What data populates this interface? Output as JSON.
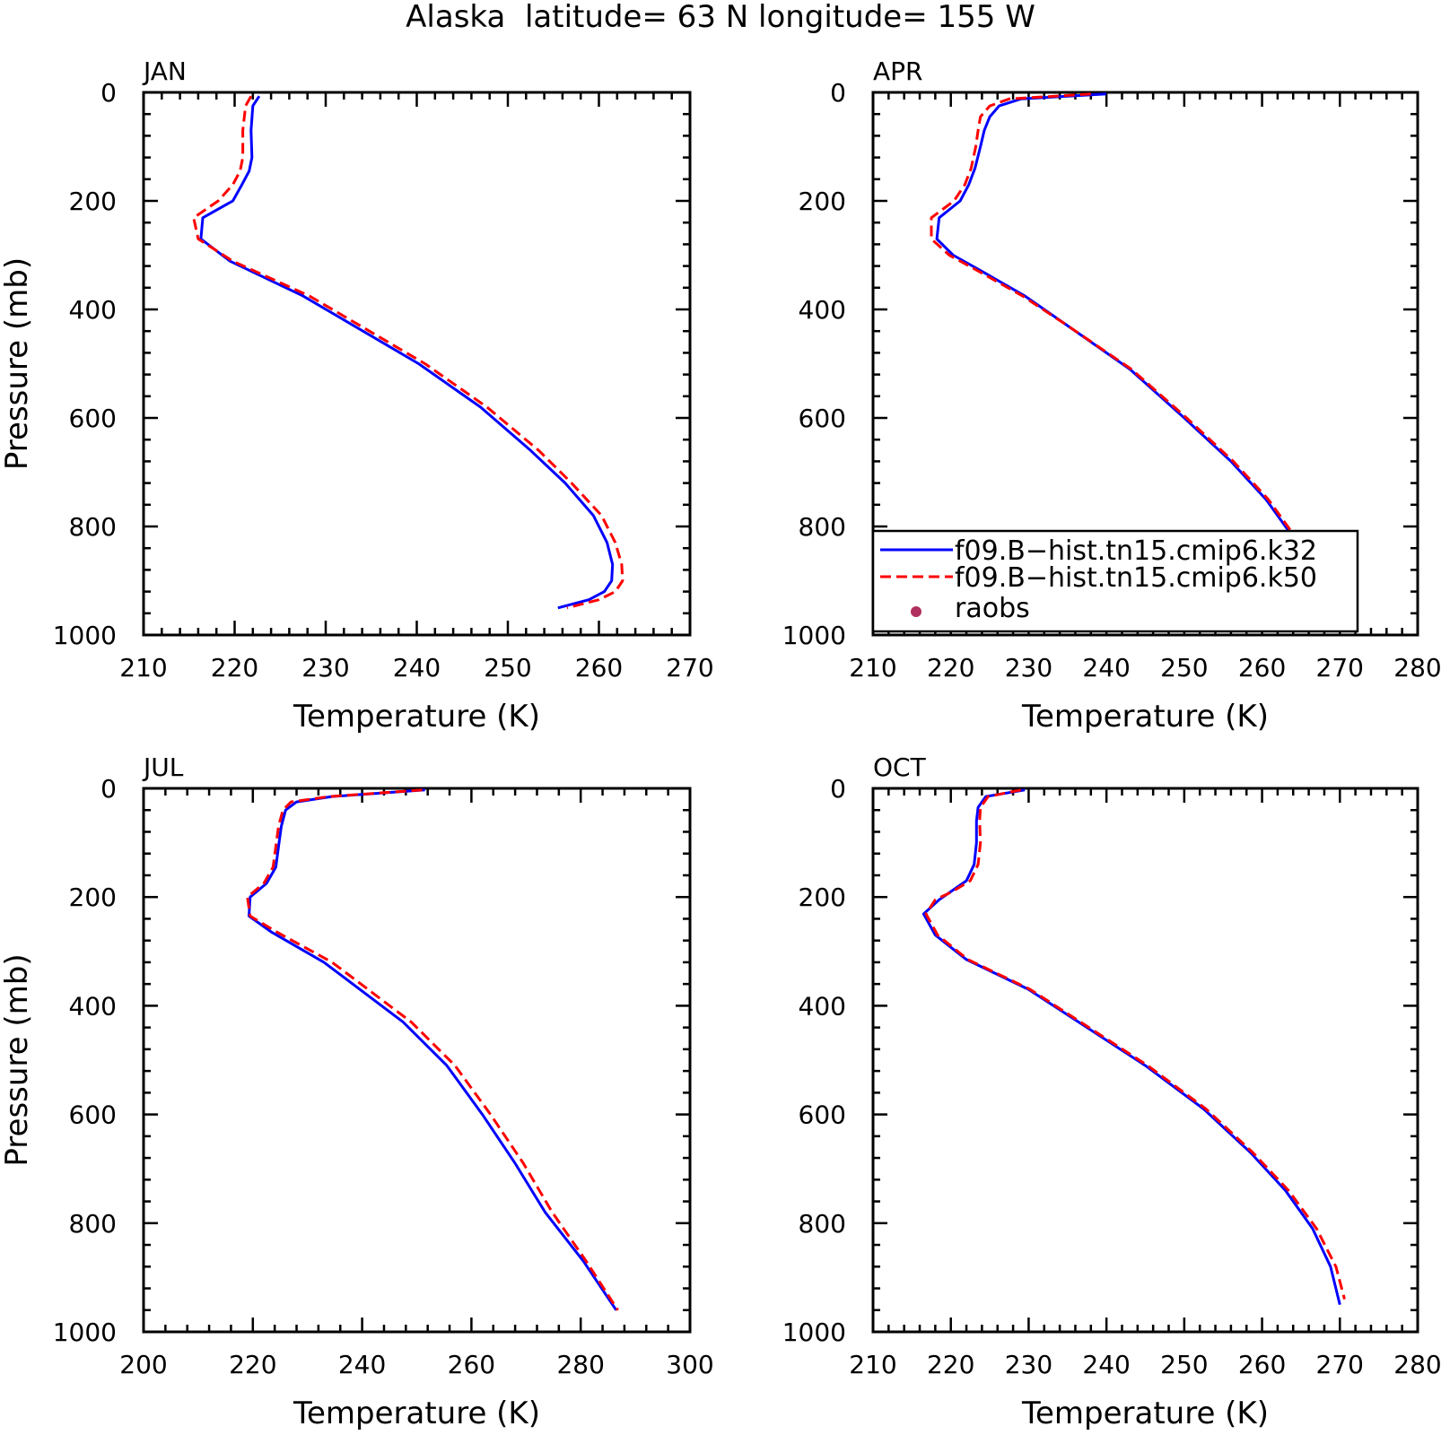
{
  "figure": {
    "title": "Alaska  latitude= 63 N longitude= 155 W"
  },
  "legend": {
    "entries": [
      {
        "label": "f09.B−hist.tn15.cmip6.k32",
        "color": "#0000ff",
        "style": "solid"
      },
      {
        "label": "f09.B−hist.tn15.cmip6.k50",
        "color": "#ff0000",
        "style": "dashed"
      },
      {
        "label": "raobs",
        "color": "#b03060",
        "style": "marker"
      }
    ]
  },
  "chart_data": [
    {
      "type": "line",
      "panel": "JAN",
      "xlabel": "Temperature (K)",
      "ylabel": "Pressure (mb)",
      "xlim": [
        210,
        270
      ],
      "xticks": [
        210,
        220,
        230,
        240,
        250,
        260,
        270
      ],
      "ylim": [
        1000,
        0
      ],
      "yticks": [
        0,
        200,
        400,
        600,
        800,
        1000
      ],
      "series": [
        {
          "name": "f09.B−hist.tn15.cmip6.k32",
          "color": "#0000ff",
          "dash": false,
          "x": [
            222.7,
            222.0,
            221.8,
            221.9,
            221.6,
            220.8,
            219.8,
            216.5,
            216.3,
            219.5,
            227.5,
            240.2,
            247.0,
            252.5,
            256.3,
            259.4,
            260.9,
            261.5,
            261.4,
            260.6,
            258.9,
            255.5
          ],
          "y": [
            7,
            25,
            70,
            120,
            145,
            170,
            200,
            231,
            270,
            311,
            375,
            500,
            580,
            660,
            720,
            780,
            830,
            870,
            900,
            920,
            935,
            950
          ]
        },
        {
          "name": "f09.B−hist.tn15.cmip6.k50",
          "color": "#ff0000",
          "dash": true,
          "x": [
            221.8,
            221.2,
            220.9,
            220.9,
            220.6,
            219.8,
            218.2,
            215.5,
            216.0,
            219.8,
            228.2,
            240.9,
            247.7,
            253.4,
            257.0,
            260.3,
            261.8,
            262.5,
            262.6,
            261.8,
            260.0,
            256.5
          ],
          "y": [
            7,
            25,
            70,
            120,
            145,
            170,
            200,
            231,
            270,
            311,
            375,
            500,
            580,
            660,
            720,
            780,
            830,
            870,
            900,
            920,
            935,
            950
          ]
        }
      ]
    },
    {
      "type": "line",
      "panel": "APR",
      "xlabel": "Temperature (K)",
      "ylabel": "",
      "xlim": [
        210,
        280
      ],
      "xticks": [
        210,
        220,
        230,
        240,
        250,
        260,
        270,
        280
      ],
      "ylim": [
        1000,
        0
      ],
      "yticks": [
        0,
        200,
        400,
        600,
        800,
        1000
      ],
      "series": [
        {
          "name": "f09.B−hist.tn15.cmip6.k32",
          "color": "#0000ff",
          "dash": false,
          "x": [
            240.0,
            229.0,
            226.2,
            225.0,
            224.3,
            223.8,
            223.1,
            222.3,
            221.2,
            218.5,
            218.2,
            220.3,
            224.0,
            229.5,
            235.0,
            243.0,
            250.0,
            256.0,
            260.5,
            264.0,
            267.0,
            270.5
          ],
          "y": [
            3,
            12,
            25,
            45,
            70,
            100,
            140,
            170,
            200,
            231,
            270,
            300,
            330,
            375,
            430,
            510,
            600,
            680,
            750,
            820,
            880,
            950
          ]
        },
        {
          "name": "f09.B−hist.tn15.cmip6.k50",
          "color": "#ff0000",
          "dash": true,
          "x": [
            238.0,
            227.5,
            225.0,
            223.8,
            223.5,
            223.2,
            222.6,
            221.8,
            220.4,
            217.5,
            217.5,
            219.8,
            223.6,
            229.2,
            235.0,
            243.2,
            250.3,
            256.3,
            260.8,
            264.3,
            267.4,
            270.8
          ],
          "y": [
            3,
            12,
            25,
            45,
            70,
            100,
            140,
            170,
            200,
            231,
            270,
            300,
            330,
            375,
            430,
            510,
            600,
            680,
            750,
            820,
            880,
            950
          ]
        }
      ]
    },
    {
      "type": "line",
      "panel": "JUL",
      "xlabel": "Temperature (K)",
      "ylabel": "Pressure (mb)",
      "xlim": [
        200,
        300
      ],
      "xticks": [
        200,
        220,
        240,
        260,
        280,
        300
      ],
      "ylim": [
        1000,
        0
      ],
      "yticks": [
        0,
        200,
        400,
        600,
        800,
        1000
      ],
      "series": [
        {
          "name": "f09.B−hist.tn15.cmip6.k32",
          "color": "#0000ff",
          "dash": false,
          "x": [
            251.5,
            234.5,
            228.0,
            226.0,
            225.2,
            224.8,
            224.2,
            222.5,
            219.5,
            219.3,
            223.5,
            233.0,
            247.5,
            255.5,
            262.0,
            268.0,
            273.5,
            280.5,
            286.5
          ],
          "y": [
            3,
            15,
            25,
            40,
            70,
            100,
            145,
            175,
            200,
            235,
            265,
            320,
            430,
            510,
            600,
            690,
            780,
            870,
            960
          ]
        },
        {
          "name": "f09.B−hist.tn15.cmip6.k50",
          "color": "#ff0000",
          "dash": true,
          "x": [
            251.0,
            234.0,
            227.0,
            225.5,
            224.7,
            224.3,
            223.7,
            222.0,
            219.0,
            219.5,
            224.5,
            234.5,
            249.0,
            257.0,
            263.5,
            269.5,
            274.8,
            281.0,
            286.8
          ],
          "y": [
            3,
            15,
            25,
            40,
            70,
            100,
            145,
            175,
            200,
            235,
            265,
            320,
            430,
            510,
            600,
            690,
            780,
            870,
            960
          ]
        }
      ]
    },
    {
      "type": "line",
      "panel": "OCT",
      "xlabel": "Temperature (K)",
      "ylabel": "",
      "xlim": [
        210,
        280
      ],
      "xticks": [
        210,
        220,
        230,
        240,
        250,
        260,
        270,
        280
      ],
      "ylim": [
        1000,
        0
      ],
      "yticks": [
        0,
        200,
        400,
        600,
        800,
        1000
      ],
      "series": [
        {
          "name": "f09.B−hist.tn15.cmip6.k32",
          "color": "#0000ff",
          "dash": false,
          "x": [
            229.5,
            224.5,
            223.5,
            223.3,
            223.3,
            223.0,
            222.0,
            220.0,
            218.5,
            216.5,
            218.0,
            222.0,
            230.0,
            245.0,
            252.5,
            258.5,
            263.0,
            266.5,
            268.8,
            270.0
          ],
          "y": [
            3,
            15,
            35,
            60,
            100,
            140,
            170,
            190,
            205,
            231,
            270,
            315,
            370,
            510,
            590,
            670,
            740,
            810,
            880,
            950
          ]
        },
        {
          "name": "f09.B−hist.tn15.cmip6.k50",
          "color": "#ff0000",
          "dash": true,
          "x": [
            229.0,
            224.8,
            223.8,
            223.7,
            223.8,
            223.5,
            222.5,
            220.2,
            218.0,
            216.8,
            218.3,
            222.2,
            230.2,
            245.3,
            252.8,
            258.8,
            263.4,
            267.0,
            269.5,
            270.6
          ],
          "y": [
            3,
            15,
            35,
            60,
            100,
            140,
            170,
            190,
            205,
            231,
            270,
            315,
            370,
            510,
            590,
            670,
            740,
            810,
            880,
            940
          ]
        }
      ]
    }
  ]
}
